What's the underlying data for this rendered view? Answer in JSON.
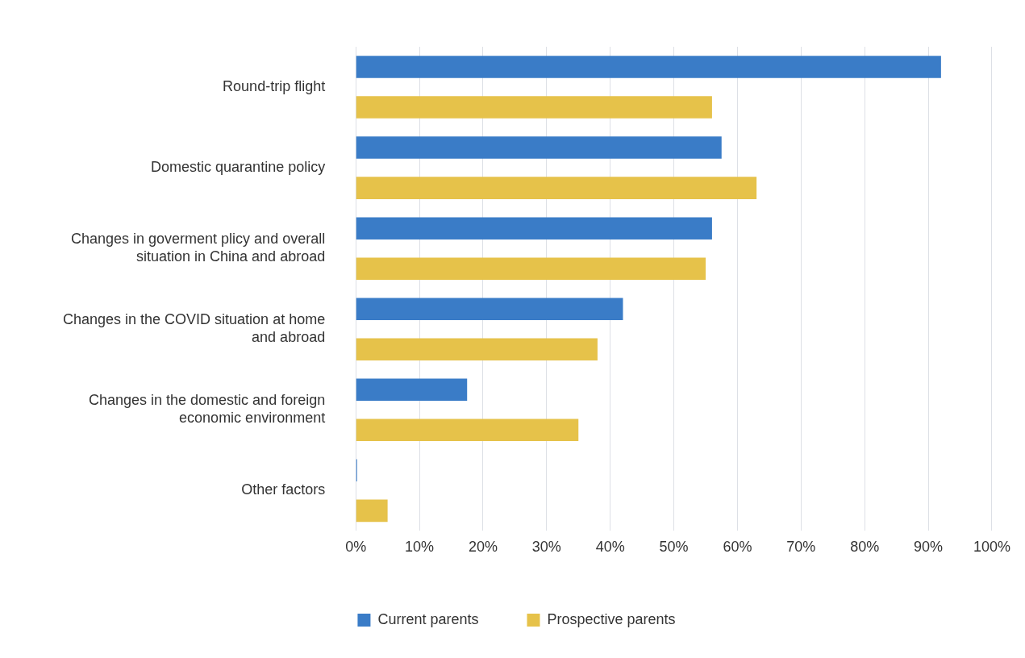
{
  "chart_data": {
    "type": "bar",
    "orientation": "horizontal",
    "categories": [
      "Round-trip flight",
      "Domestic quarantine policy",
      "Changes in goverment plicy and overall situation in China and abroad",
      "Changes in the COVID situation at home and abroad",
      "Changes in the domestic and foreign economic environment",
      "Other factors"
    ],
    "series": [
      {
        "name": "Current parents",
        "color": "#3a7cc7",
        "values": [
          92,
          57.5,
          56,
          42,
          17.5,
          0.2
        ]
      },
      {
        "name": "Prospective parents",
        "color": "#e6c24a",
        "values": [
          56,
          63,
          55,
          38,
          35,
          5
        ]
      }
    ],
    "xlim": [
      0,
      100
    ],
    "xticks": [
      {
        "value": 0,
        "label": "0%"
      },
      {
        "value": 10,
        "label": "10%"
      },
      {
        "value": 20,
        "label": "20%"
      },
      {
        "value": 30,
        "label": "30%"
      },
      {
        "value": 40,
        "label": "40%"
      },
      {
        "value": 50,
        "label": "50%"
      },
      {
        "value": 60,
        "label": "60%"
      },
      {
        "value": 70,
        "label": "70%"
      },
      {
        "value": 80,
        "label": "80%"
      },
      {
        "value": 90,
        "label": "90%"
      },
      {
        "value": 100,
        "label": "100%"
      }
    ],
    "grid": "x",
    "legend": "bottom"
  }
}
